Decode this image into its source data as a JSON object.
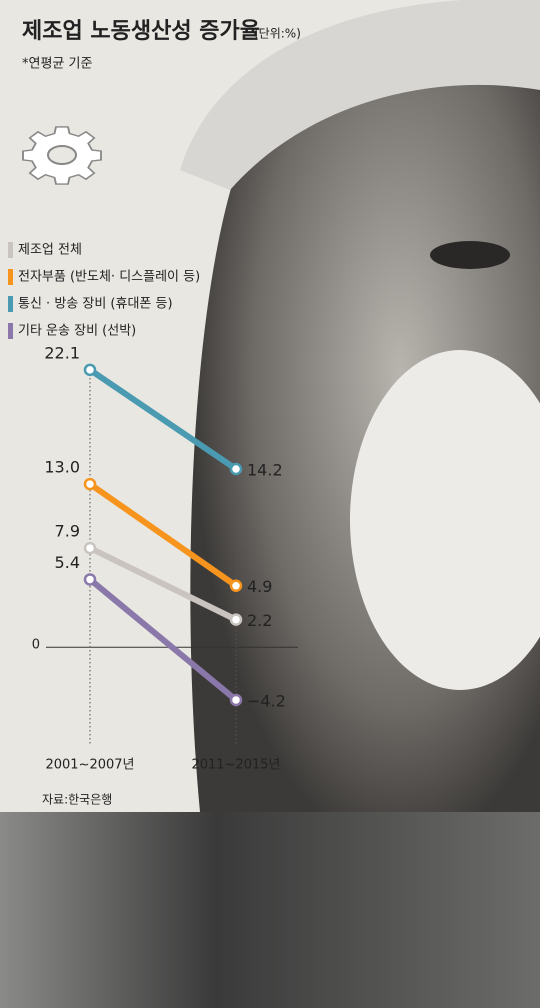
{
  "chart_data": {
    "type": "line",
    "title": "제조업 노동생산성 증가율",
    "unit": "(단위:%)",
    "subtitle": "*연평균 기준",
    "source": "자료:한국은행",
    "categories": [
      "2001~2007년",
      "2011~2015년"
    ],
    "series": [
      {
        "name": "제조업 전체",
        "color": "#c9c4bf",
        "values": [
          7.9,
          2.2
        ],
        "value_labels": [
          "7.9",
          "2.2"
        ]
      },
      {
        "name": "전자부품 (반도체· 디스플레이 등)",
        "color": "#f7941d",
        "values": [
          13.0,
          4.9
        ],
        "value_labels": [
          "13.0",
          "4.9"
        ]
      },
      {
        "name": "통신 · 방송 장비 (휴대폰 등)",
        "color": "#4a9bb2",
        "values": [
          22.1,
          14.2
        ],
        "value_labels": [
          "22.1",
          "14.2"
        ]
      },
      {
        "name": "기타 운송 장비 (선박)",
        "color": "#8a78aa",
        "values": [
          5.4,
          -4.2
        ],
        "value_labels": [
          "5.4",
          "−4.2"
        ]
      }
    ],
    "ylim": [
      -5,
      24
    ],
    "yticks": [
      0
    ]
  }
}
